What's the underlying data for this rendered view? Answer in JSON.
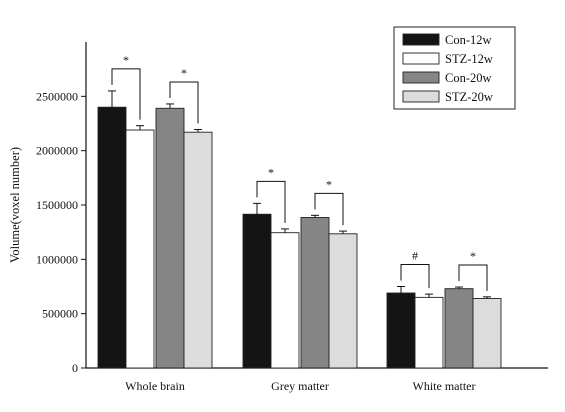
{
  "chart_data": {
    "type": "bar",
    "title": "",
    "xlabel": "",
    "ylabel": "Volume(voxel number)",
    "ylim": [
      0,
      3000000
    ],
    "yticks": [
      0,
      500000,
      1000000,
      1500000,
      2000000,
      2500000
    ],
    "ytick_labels": [
      "0",
      "500000",
      "1000000",
      "1500000",
      "2000000",
      "2500000"
    ],
    "legend_position": "top-right",
    "grid": false,
    "categories": [
      "Whole brain",
      "Grey matter",
      "White matter"
    ],
    "series": [
      {
        "name": "Con-12w",
        "color": "#141414",
        "values": [
          2400000,
          1415000,
          690000
        ],
        "errors": [
          150000,
          100000,
          60000
        ]
      },
      {
        "name": "STZ-12w",
        "color": "#ffffff",
        "values": [
          2190000,
          1245000,
          650000
        ],
        "errors": [
          40000,
          35000,
          30000
        ]
      },
      {
        "name": "Con-20w",
        "color": "#858585",
        "values": [
          2390000,
          1385000,
          730000
        ],
        "errors": [
          40000,
          20000,
          15000
        ]
      },
      {
        "name": "STZ-20w",
        "color": "#dcdcdc",
        "values": [
          2170000,
          1235000,
          640000
        ],
        "errors": [
          25000,
          25000,
          15000
        ]
      }
    ],
    "significance": [
      {
        "category": 0,
        "pair": [
          0,
          1
        ],
        "label": "*"
      },
      {
        "category": 0,
        "pair": [
          2,
          3
        ],
        "label": "*"
      },
      {
        "category": 1,
        "pair": [
          0,
          1
        ],
        "label": "*"
      },
      {
        "category": 1,
        "pair": [
          2,
          3
        ],
        "label": "*"
      },
      {
        "category": 2,
        "pair": [
          0,
          1
        ],
        "label": "#"
      },
      {
        "category": 2,
        "pair": [
          2,
          3
        ],
        "label": "*"
      }
    ]
  }
}
